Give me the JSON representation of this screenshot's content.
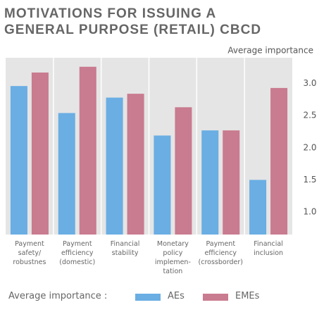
{
  "chart_data": {
    "type": "bar",
    "title": "MOTIVATIONS FOR ISSUING A GENERAL PURPOSE (RETAIL) CBCD",
    "y_label": "Average importance",
    "legend_title": "Average importance :",
    "categories": [
      "Payment safety/ robustnes",
      "Payment efficiency (domestic)",
      "Financial stability",
      "Monetary policy implemen-tation",
      "Payment efficiency (crossborder)",
      "Financial inclusion"
    ],
    "series": [
      {
        "name": "AEs",
        "color": "#6aaee3",
        "values": [
          2.96,
          2.54,
          2.78,
          2.19,
          2.27,
          1.5
        ]
      },
      {
        "name": "EMEs",
        "color": "#c97b8f",
        "values": [
          3.17,
          3.26,
          2.84,
          2.63,
          2.27,
          2.93
        ]
      }
    ],
    "ylim": [
      0.65,
      3.4
    ],
    "yticks": [
      {
        "value": 1,
        "label": "1.0"
      },
      1.5,
      {
        "value": 2,
        "label": "2.0"
      },
      2.5,
      {
        "value": 3,
        "label": "3.0"
      }
    ],
    "grid": false
  }
}
